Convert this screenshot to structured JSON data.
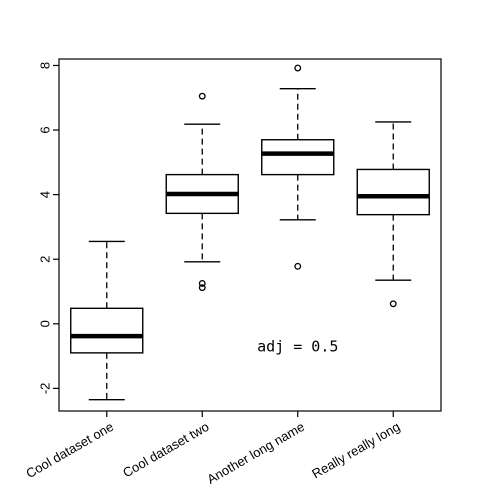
{
  "chart_data": {
    "type": "box",
    "categories": [
      "Cool dataset one",
      "Cool dataset two",
      "Another long name",
      "Really really long"
    ],
    "boxes": [
      {
        "whisker_low": -2.35,
        "q1": -0.9,
        "median": -0.38,
        "q3": 0.48,
        "whisker_high": 2.55,
        "outliers": []
      },
      {
        "whisker_low": 1.92,
        "q1": 3.42,
        "median": 4.02,
        "q3": 4.62,
        "whisker_high": 6.18,
        "outliers": [
          7.05,
          1.25,
          1.12
        ]
      },
      {
        "whisker_low": 3.22,
        "q1": 4.62,
        "median": 5.27,
        "q3": 5.7,
        "whisker_high": 7.28,
        "outliers": [
          7.92,
          1.78
        ]
      },
      {
        "whisker_low": 1.35,
        "q1": 3.38,
        "median": 3.95,
        "q3": 4.78,
        "whisker_high": 6.25,
        "outliers": [
          0.62
        ]
      }
    ],
    "ylim": [
      -2.7,
      8.2
    ],
    "yticks": [
      -2,
      0,
      2,
      4,
      6,
      8
    ],
    "annotation": "adj = 0.5",
    "annotation_at": {
      "category": 2.5,
      "y": -0.7
    },
    "grid": false,
    "title": "",
    "xlabel": "",
    "ylabel": ""
  }
}
